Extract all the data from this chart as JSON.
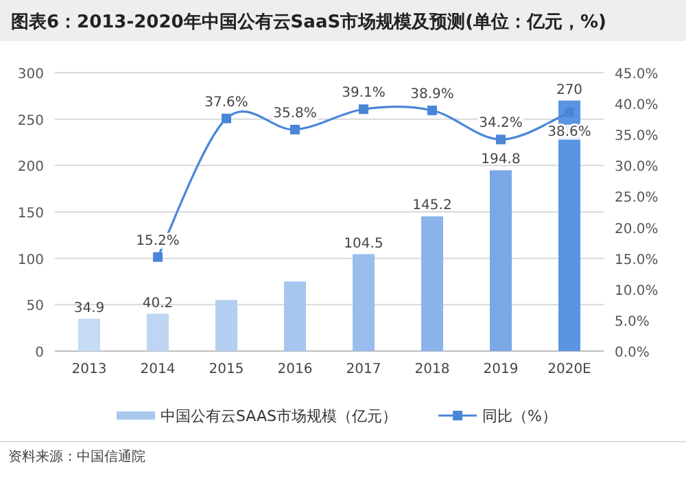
{
  "chart_data": {
    "type": "bar",
    "title": "图表6：2013-2020年中国公有云SaaS市场规模及预测(单位：亿元，%)",
    "categories": [
      "2013",
      "2014",
      "2015",
      "2016",
      "2017",
      "2018",
      "2019",
      "2020E"
    ],
    "series": [
      {
        "name": "中国公有云SAAS市场规模（亿元）",
        "color": "#a9c8ef",
        "colors": [
          "#c5dbf6",
          "#bed6f4",
          "#b2cef1",
          "#a6c6ef",
          "#99bded",
          "#8bb4ea",
          "#7aa8e7",
          "#5b95e2"
        ],
        "values": [
          34.9,
          40.2,
          55,
          75,
          104.5,
          145.2,
          194.8,
          270
        ],
        "value_labels": [
          "34.9",
          "40.2",
          null,
          null,
          "104.5",
          "145.2",
          "194.8",
          "270"
        ]
      },
      {
        "name": "同比（%）",
        "type": "line",
        "axis": "y2",
        "color": "#4a86d8",
        "marker": "square",
        "values": [
          null,
          15.2,
          37.6,
          35.8,
          39.1,
          38.9,
          34.2,
          38.6
        ],
        "value_labels": [
          null,
          "15.2%",
          "37.6%",
          "35.8%",
          "39.1%",
          "38.9%",
          "34.2%",
          "38.6%"
        ]
      }
    ],
    "ylim": [
      0,
      300
    ],
    "yticks": [
      0,
      50,
      100,
      150,
      200,
      250,
      300
    ],
    "y2lim": [
      0,
      45
    ],
    "y2ticks": [
      {
        "value": 0,
        "label": "0.0%"
      },
      {
        "value": 5,
        "label": "5.0%"
      },
      {
        "value": 10,
        "label": "10.0%"
      },
      {
        "value": 15,
        "label": "15.0%"
      },
      {
        "value": 20,
        "label": "20.0%"
      },
      {
        "value": 25,
        "label": "25.0%"
      },
      {
        "value": 30,
        "label": "30.0%"
      },
      {
        "value": 35,
        "label": "35.0%"
      },
      {
        "value": 40,
        "label": "40.0%"
      },
      {
        "value": 45,
        "label": "45.0%"
      }
    ],
    "grid": "y",
    "legend": "bottom",
    "annotations": [
      "资料来源：中国信通院"
    ]
  }
}
